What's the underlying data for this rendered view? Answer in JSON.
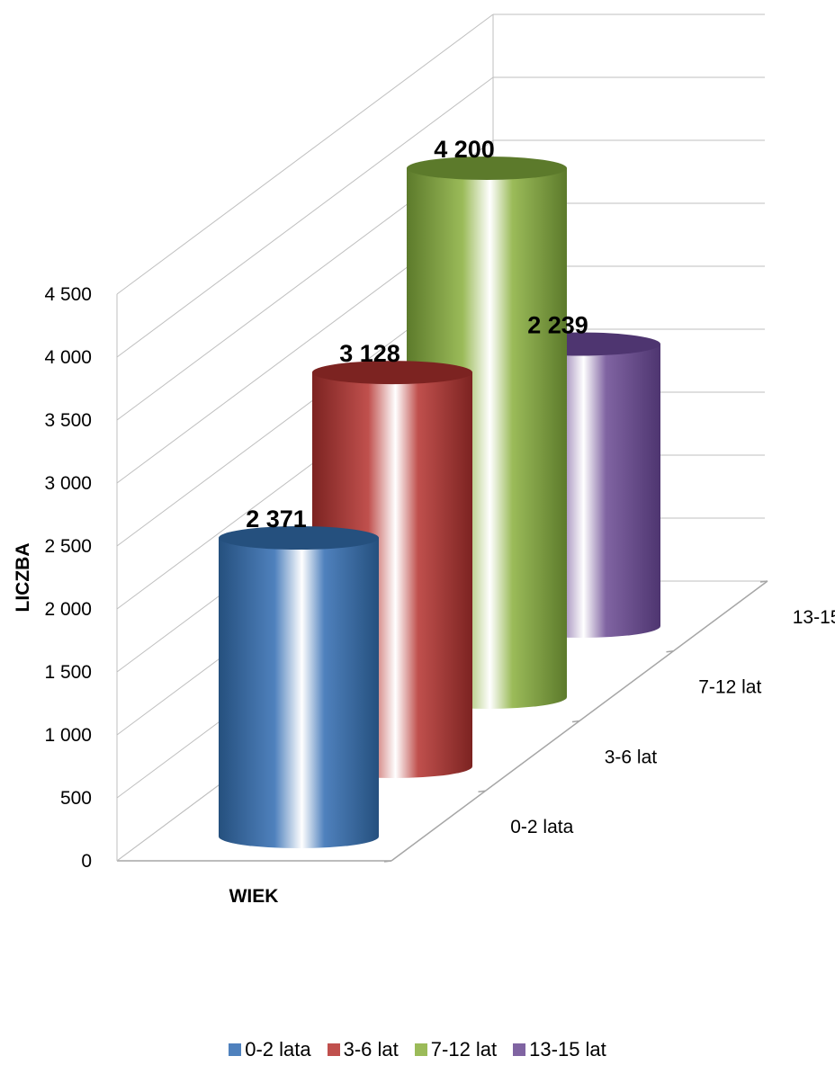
{
  "chart_data": {
    "type": "bar",
    "bar_shape": "3d-cylinder",
    "xlabel": "WIEK",
    "ylabel": "LICZBA",
    "ylim": [
      0,
      4500
    ],
    "yticks": [
      "0",
      "500",
      "1 000",
      "1 500",
      "2 000",
      "2 500",
      "3 000",
      "3 500",
      "4 000",
      "4 500"
    ],
    "series": [
      {
        "name": "0-2 lata",
        "value": 2371,
        "label": "2 371",
        "color": "#4f81bd",
        "dark": "#25507e"
      },
      {
        "name": "3-6 lat",
        "value": 3128,
        "label": "3 128",
        "color": "#c0504d",
        "dark": "#7c2321"
      },
      {
        "name": "7-12 lat",
        "value": 4200,
        "label": "4 200",
        "color": "#9bbb59",
        "dark": "#5c7a2b"
      },
      {
        "name": "13-15 lat",
        "value": 2239,
        "label": "2 239",
        "color": "#8064a2",
        "dark": "#4e3570"
      }
    ],
    "grid": true,
    "legend": "bottom"
  }
}
